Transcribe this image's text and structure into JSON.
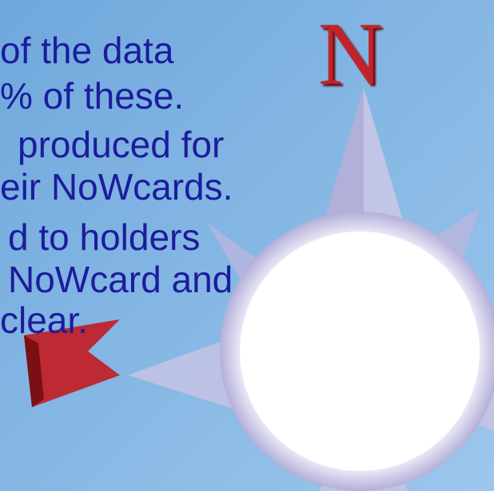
{
  "slide": {
    "mark": "N",
    "lines": [
      "of the data",
      "% of these.",
      "produced for",
      "eir NoWcards.",
      "d to holders",
      "NoWcard and",
      "clear."
    ]
  }
}
